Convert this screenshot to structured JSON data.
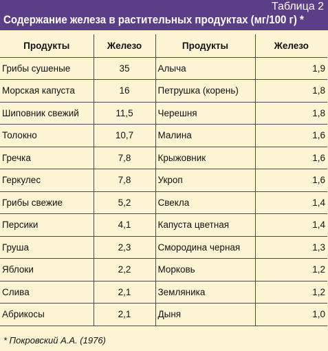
{
  "header": {
    "table_number": "Таблица 2",
    "title": "Содержание железа в растительных продуктах (мг/100 г) *"
  },
  "columns": [
    "Продукты",
    "Железо",
    "Продукты",
    "Железо"
  ],
  "rows": [
    [
      "Грибы сушеные",
      "35",
      "Алыча",
      "1,9"
    ],
    [
      "Морская капуста",
      "16",
      "Петрушка (корень)",
      "1,8"
    ],
    [
      "Шиповник свежий",
      "11,5",
      "Черешня",
      "1,8"
    ],
    [
      "Толокно",
      "10,7",
      "Малина",
      "1,6"
    ],
    [
      "Гречка",
      "7,8",
      "Крыжовник",
      "1,6"
    ],
    [
      "Геркулес",
      "7,8",
      "Укроп",
      "1,6"
    ],
    [
      "Грибы свежие",
      "5,2",
      "Свекла",
      "1,4"
    ],
    [
      "Персики",
      "4,1",
      "Капуста цветная",
      "1,4"
    ],
    [
      "Груша",
      "2,3",
      "Смородина черная",
      "1,3"
    ],
    [
      "Яблоки",
      "2,2",
      "Морковь",
      "1,2"
    ],
    [
      "Слива",
      "2,1",
      "Земляника",
      "1,2"
    ],
    [
      "Абрикосы",
      "2,1",
      "Дыня",
      "1,0"
    ]
  ],
  "footnote": "* Покровский А.А. (1976)",
  "colors": {
    "header_bg": "#5b3f86",
    "page_bg": "#fcf4d3",
    "header_text": "#ffffff"
  }
}
